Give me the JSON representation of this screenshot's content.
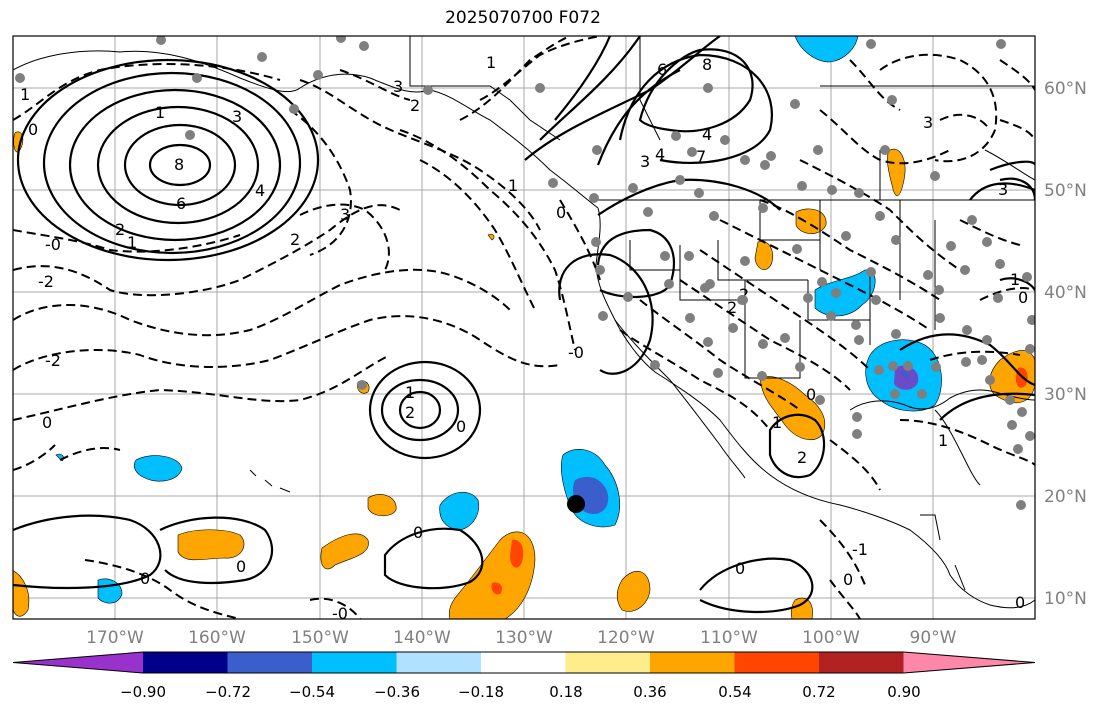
{
  "map": {
    "title": "2025070700 F072",
    "lon_ticks": [
      "170°W",
      "160°W",
      "150°W",
      "140°W",
      "130°W",
      "120°W",
      "110°W",
      "100°W",
      "90°W"
    ],
    "lat_ticks": [
      "60°N",
      "50°N",
      "40°N",
      "30°N",
      "20°N",
      "10°N"
    ],
    "colorbar": {
      "ticks": [
        "−0.90",
        "−0.72",
        "−0.54",
        "−0.36",
        "−0.18",
        "0.18",
        "0.36",
        "0.54",
        "0.72",
        "0.90"
      ],
      "colors": [
        "#9932cc",
        "#00008b",
        "#3a5fcd",
        "#00bfff",
        "#b0e2ff",
        "#ffffff",
        "#ffec8b",
        "#ffa500",
        "#ff4500",
        "#b22222",
        "#ff88aa"
      ]
    },
    "fill_colors": {
      "neg_light": "#00bfff",
      "neg_dark": "#3a5fcd",
      "neg_deep": "#6a4cc8",
      "pos_light": "#ffa500",
      "pos_dark": "#ff4500"
    },
    "contour_labels": [
      "1",
      "3",
      "6",
      "8",
      "4",
      "2",
      "1",
      "2",
      "3",
      "2",
      "0",
      "-2",
      "-2",
      "-0",
      "0",
      "1",
      "2",
      "0",
      "0",
      "0",
      "0",
      "0",
      "-0",
      "1",
      "3",
      "6",
      "8",
      "4",
      "4",
      "7",
      "3",
      "1",
      "0",
      "2",
      "2",
      "2",
      "0",
      "1",
      "-1",
      "0",
      "3",
      "3",
      "0",
      "-0",
      "0",
      "1",
      "1",
      "1"
    ]
  }
}
